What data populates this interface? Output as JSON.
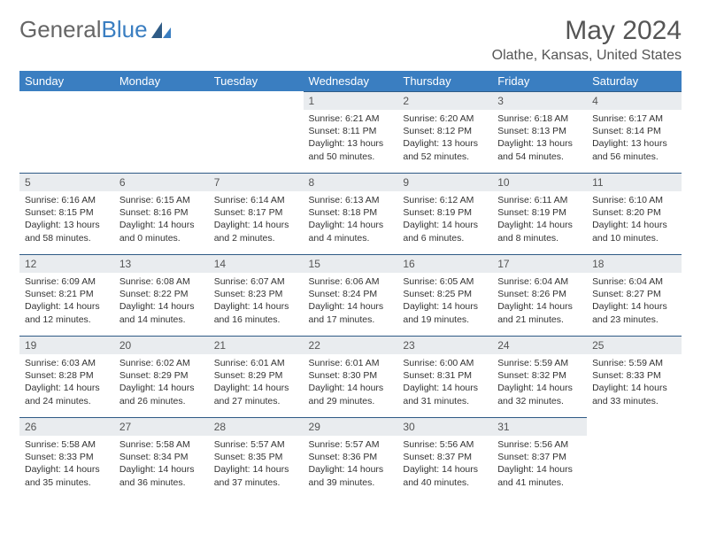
{
  "logo": {
    "text_left": "General",
    "text_right": "Blue"
  },
  "header": {
    "title": "May 2024",
    "subtitle": "Olathe, Kansas, United States"
  },
  "colors": {
    "header_bg": "#3a7ec1",
    "header_fg": "#ffffff",
    "daynum_bg": "#e9ecef",
    "row_border": "#2f5b86",
    "text": "#333333",
    "title": "#555555"
  },
  "days_of_week": [
    "Sunday",
    "Monday",
    "Tuesday",
    "Wednesday",
    "Thursday",
    "Friday",
    "Saturday"
  ],
  "weeks": [
    [
      {
        "n": "",
        "sunrise": "",
        "sunset": "",
        "daylight": ""
      },
      {
        "n": "",
        "sunrise": "",
        "sunset": "",
        "daylight": ""
      },
      {
        "n": "",
        "sunrise": "",
        "sunset": "",
        "daylight": ""
      },
      {
        "n": "1",
        "sunrise": "Sunrise: 6:21 AM",
        "sunset": "Sunset: 8:11 PM",
        "daylight": "Daylight: 13 hours and 50 minutes."
      },
      {
        "n": "2",
        "sunrise": "Sunrise: 6:20 AM",
        "sunset": "Sunset: 8:12 PM",
        "daylight": "Daylight: 13 hours and 52 minutes."
      },
      {
        "n": "3",
        "sunrise": "Sunrise: 6:18 AM",
        "sunset": "Sunset: 8:13 PM",
        "daylight": "Daylight: 13 hours and 54 minutes."
      },
      {
        "n": "4",
        "sunrise": "Sunrise: 6:17 AM",
        "sunset": "Sunset: 8:14 PM",
        "daylight": "Daylight: 13 hours and 56 minutes."
      }
    ],
    [
      {
        "n": "5",
        "sunrise": "Sunrise: 6:16 AM",
        "sunset": "Sunset: 8:15 PM",
        "daylight": "Daylight: 13 hours and 58 minutes."
      },
      {
        "n": "6",
        "sunrise": "Sunrise: 6:15 AM",
        "sunset": "Sunset: 8:16 PM",
        "daylight": "Daylight: 14 hours and 0 minutes."
      },
      {
        "n": "7",
        "sunrise": "Sunrise: 6:14 AM",
        "sunset": "Sunset: 8:17 PM",
        "daylight": "Daylight: 14 hours and 2 minutes."
      },
      {
        "n": "8",
        "sunrise": "Sunrise: 6:13 AM",
        "sunset": "Sunset: 8:18 PM",
        "daylight": "Daylight: 14 hours and 4 minutes."
      },
      {
        "n": "9",
        "sunrise": "Sunrise: 6:12 AM",
        "sunset": "Sunset: 8:19 PM",
        "daylight": "Daylight: 14 hours and 6 minutes."
      },
      {
        "n": "10",
        "sunrise": "Sunrise: 6:11 AM",
        "sunset": "Sunset: 8:19 PM",
        "daylight": "Daylight: 14 hours and 8 minutes."
      },
      {
        "n": "11",
        "sunrise": "Sunrise: 6:10 AM",
        "sunset": "Sunset: 8:20 PM",
        "daylight": "Daylight: 14 hours and 10 minutes."
      }
    ],
    [
      {
        "n": "12",
        "sunrise": "Sunrise: 6:09 AM",
        "sunset": "Sunset: 8:21 PM",
        "daylight": "Daylight: 14 hours and 12 minutes."
      },
      {
        "n": "13",
        "sunrise": "Sunrise: 6:08 AM",
        "sunset": "Sunset: 8:22 PM",
        "daylight": "Daylight: 14 hours and 14 minutes."
      },
      {
        "n": "14",
        "sunrise": "Sunrise: 6:07 AM",
        "sunset": "Sunset: 8:23 PM",
        "daylight": "Daylight: 14 hours and 16 minutes."
      },
      {
        "n": "15",
        "sunrise": "Sunrise: 6:06 AM",
        "sunset": "Sunset: 8:24 PM",
        "daylight": "Daylight: 14 hours and 17 minutes."
      },
      {
        "n": "16",
        "sunrise": "Sunrise: 6:05 AM",
        "sunset": "Sunset: 8:25 PM",
        "daylight": "Daylight: 14 hours and 19 minutes."
      },
      {
        "n": "17",
        "sunrise": "Sunrise: 6:04 AM",
        "sunset": "Sunset: 8:26 PM",
        "daylight": "Daylight: 14 hours and 21 minutes."
      },
      {
        "n": "18",
        "sunrise": "Sunrise: 6:04 AM",
        "sunset": "Sunset: 8:27 PM",
        "daylight": "Daylight: 14 hours and 23 minutes."
      }
    ],
    [
      {
        "n": "19",
        "sunrise": "Sunrise: 6:03 AM",
        "sunset": "Sunset: 8:28 PM",
        "daylight": "Daylight: 14 hours and 24 minutes."
      },
      {
        "n": "20",
        "sunrise": "Sunrise: 6:02 AM",
        "sunset": "Sunset: 8:29 PM",
        "daylight": "Daylight: 14 hours and 26 minutes."
      },
      {
        "n": "21",
        "sunrise": "Sunrise: 6:01 AM",
        "sunset": "Sunset: 8:29 PM",
        "daylight": "Daylight: 14 hours and 27 minutes."
      },
      {
        "n": "22",
        "sunrise": "Sunrise: 6:01 AM",
        "sunset": "Sunset: 8:30 PM",
        "daylight": "Daylight: 14 hours and 29 minutes."
      },
      {
        "n": "23",
        "sunrise": "Sunrise: 6:00 AM",
        "sunset": "Sunset: 8:31 PM",
        "daylight": "Daylight: 14 hours and 31 minutes."
      },
      {
        "n": "24",
        "sunrise": "Sunrise: 5:59 AM",
        "sunset": "Sunset: 8:32 PM",
        "daylight": "Daylight: 14 hours and 32 minutes."
      },
      {
        "n": "25",
        "sunrise": "Sunrise: 5:59 AM",
        "sunset": "Sunset: 8:33 PM",
        "daylight": "Daylight: 14 hours and 33 minutes."
      }
    ],
    [
      {
        "n": "26",
        "sunrise": "Sunrise: 5:58 AM",
        "sunset": "Sunset: 8:33 PM",
        "daylight": "Daylight: 14 hours and 35 minutes."
      },
      {
        "n": "27",
        "sunrise": "Sunrise: 5:58 AM",
        "sunset": "Sunset: 8:34 PM",
        "daylight": "Daylight: 14 hours and 36 minutes."
      },
      {
        "n": "28",
        "sunrise": "Sunrise: 5:57 AM",
        "sunset": "Sunset: 8:35 PM",
        "daylight": "Daylight: 14 hours and 37 minutes."
      },
      {
        "n": "29",
        "sunrise": "Sunrise: 5:57 AM",
        "sunset": "Sunset: 8:36 PM",
        "daylight": "Daylight: 14 hours and 39 minutes."
      },
      {
        "n": "30",
        "sunrise": "Sunrise: 5:56 AM",
        "sunset": "Sunset: 8:37 PM",
        "daylight": "Daylight: 14 hours and 40 minutes."
      },
      {
        "n": "31",
        "sunrise": "Sunrise: 5:56 AM",
        "sunset": "Sunset: 8:37 PM",
        "daylight": "Daylight: 14 hours and 41 minutes."
      },
      {
        "n": "",
        "sunrise": "",
        "sunset": "",
        "daylight": ""
      }
    ]
  ]
}
